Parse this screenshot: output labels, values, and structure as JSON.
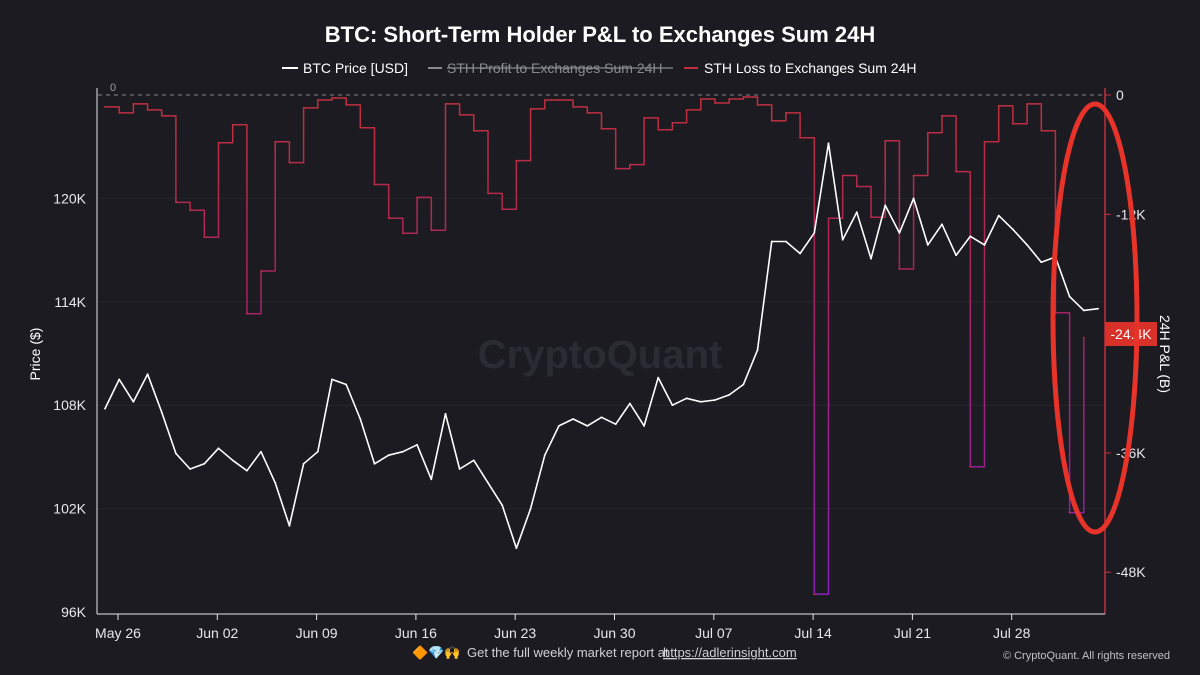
{
  "chart_data": {
    "type": "line",
    "title": "BTC: Short-Term Holder P&L to Exchanges Sum 24H",
    "legend": [
      {
        "name": "BTC Price [USD]",
        "color": "#ffffff",
        "visible": true
      },
      {
        "name": "STH Profit to Exchanges Sum 24H",
        "color": "#8a8a92",
        "visible": false
      },
      {
        "name": "STH Loss to Exchanges Sum 24H",
        "color": "#c2303d",
        "visible": true
      }
    ],
    "legend_placement": "top-center",
    "ylabel_left": "Price ($)",
    "ylabel_right": "24H P&L (B)",
    "left_axis": {
      "ylim": [
        96000,
        126000
      ],
      "ticks": [
        "96K",
        "102K",
        "108K",
        "114K",
        "120K"
      ],
      "tick_values": [
        96000,
        102000,
        108000,
        114000,
        120000
      ]
    },
    "right_axis": {
      "ylim": [
        -52000,
        0
      ],
      "ticks": [
        "0",
        "-12K",
        "-24K",
        "-36K",
        "-48K"
      ],
      "tick_values": [
        0,
        -12000,
        -24000,
        -36000,
        -48000
      ]
    },
    "x_axis": {
      "start": "2025-05-26",
      "end": "2025-08-04",
      "tick_labels": [
        "May 26",
        "Jun 02",
        "Jun 09",
        "Jun 16",
        "Jun 23",
        "Jun 30",
        "Jul 07",
        "Jul 14",
        "Jul 21",
        "Jul 28"
      ],
      "tick_dates": [
        "2025-05-26",
        "2025-06-02",
        "2025-06-09",
        "2025-06-16",
        "2025-06-23",
        "2025-06-30",
        "2025-07-07",
        "2025-07-14",
        "2025-07-21",
        "2025-07-28"
      ]
    },
    "current_value_badge": "-24.4K",
    "zero_line_label": "0",
    "grid": true,
    "series": [
      {
        "name": "BTC Price [USD]",
        "color": "#ffffff",
        "points": [
          [
            "2025-05-26",
            107800
          ],
          [
            "2025-05-27",
            109500
          ],
          [
            "2025-05-28",
            108200
          ],
          [
            "2025-05-29",
            109800
          ],
          [
            "2025-05-30",
            107600
          ],
          [
            "2025-05-31",
            105200
          ],
          [
            "2025-06-01",
            104300
          ],
          [
            "2025-06-02",
            104600
          ],
          [
            "2025-06-03",
            105500
          ],
          [
            "2025-06-04",
            104800
          ],
          [
            "2025-06-05",
            104200
          ],
          [
            "2025-06-06",
            105300
          ],
          [
            "2025-06-07",
            103500
          ],
          [
            "2025-06-08",
            101000
          ],
          [
            "2025-06-09",
            104600
          ],
          [
            "2025-06-10",
            105300
          ],
          [
            "2025-06-11",
            109500
          ],
          [
            "2025-06-12",
            109200
          ],
          [
            "2025-06-13",
            107200
          ],
          [
            "2025-06-14",
            104600
          ],
          [
            "2025-06-15",
            105100
          ],
          [
            "2025-06-16",
            105300
          ],
          [
            "2025-06-17",
            105700
          ],
          [
            "2025-06-18",
            103700
          ],
          [
            "2025-06-19",
            107500
          ],
          [
            "2025-06-20",
            104300
          ],
          [
            "2025-06-21",
            104800
          ],
          [
            "2025-06-22",
            103500
          ],
          [
            "2025-06-23",
            102200
          ],
          [
            "2025-06-24",
            99700
          ],
          [
            "2025-06-25",
            102000
          ],
          [
            "2025-06-26",
            105100
          ],
          [
            "2025-06-27",
            106800
          ],
          [
            "2025-06-28",
            107200
          ],
          [
            "2025-06-29",
            106800
          ],
          [
            "2025-06-30",
            107300
          ],
          [
            "2025-07-01",
            106900
          ],
          [
            "2025-07-02",
            108100
          ],
          [
            "2025-07-03",
            106800
          ],
          [
            "2025-07-04",
            109600
          ],
          [
            "2025-07-05",
            108000
          ],
          [
            "2025-07-06",
            108400
          ],
          [
            "2025-07-07",
            108200
          ],
          [
            "2025-07-08",
            108300
          ],
          [
            "2025-07-09",
            108600
          ],
          [
            "2025-07-10",
            109200
          ],
          [
            "2025-07-11",
            111200
          ],
          [
            "2025-07-12",
            117500
          ],
          [
            "2025-07-13",
            117500
          ],
          [
            "2025-07-14",
            116800
          ],
          [
            "2025-07-15",
            118000
          ],
          [
            "2025-07-16",
            123200
          ],
          [
            "2025-07-17",
            117600
          ],
          [
            "2025-07-18",
            119200
          ],
          [
            "2025-07-19",
            116500
          ],
          [
            "2025-07-20",
            119600
          ],
          [
            "2025-07-21",
            118000
          ],
          [
            "2025-07-22",
            120000
          ],
          [
            "2025-07-23",
            117300
          ],
          [
            "2025-07-24",
            118500
          ],
          [
            "2025-07-25",
            116700
          ],
          [
            "2025-07-26",
            117800
          ],
          [
            "2025-07-27",
            117300
          ],
          [
            "2025-07-28",
            119000
          ],
          [
            "2025-07-29",
            118200
          ],
          [
            "2025-07-30",
            117300
          ],
          [
            "2025-07-31",
            116300
          ],
          [
            "2025-08-01",
            116600
          ],
          [
            "2025-08-02",
            114300
          ],
          [
            "2025-08-03",
            113500
          ],
          [
            "2025-08-04",
            113600
          ]
        ]
      },
      {
        "name": "STH Loss to Exchanges Sum 24H",
        "color": "#c2303d",
        "points": [
          [
            "2025-05-26",
            -1200
          ],
          [
            "2025-05-27",
            -1800
          ],
          [
            "2025-05-28",
            -900
          ],
          [
            "2025-05-29",
            -1500
          ],
          [
            "2025-05-30",
            -2100
          ],
          [
            "2025-05-31",
            -10800
          ],
          [
            "2025-06-01",
            -11600
          ],
          [
            "2025-06-02",
            -14300
          ],
          [
            "2025-06-03",
            -4800
          ],
          [
            "2025-06-04",
            -3000
          ],
          [
            "2025-06-05",
            -22000
          ],
          [
            "2025-06-06",
            -17700
          ],
          [
            "2025-06-07",
            -4700
          ],
          [
            "2025-06-08",
            -6800
          ],
          [
            "2025-06-09",
            -1300
          ],
          [
            "2025-06-10",
            -500
          ],
          [
            "2025-06-11",
            -300
          ],
          [
            "2025-06-12",
            -1000
          ],
          [
            "2025-06-13",
            -3300
          ],
          [
            "2025-06-14",
            -9000
          ],
          [
            "2025-06-15",
            -12400
          ],
          [
            "2025-06-16",
            -13900
          ],
          [
            "2025-06-17",
            -10300
          ],
          [
            "2025-06-18",
            -13600
          ],
          [
            "2025-06-19",
            -900
          ],
          [
            "2025-06-20",
            -2000
          ],
          [
            "2025-06-21",
            -3600
          ],
          [
            "2025-06-22",
            -9900
          ],
          [
            "2025-06-23",
            -11500
          ],
          [
            "2025-06-24",
            -6600
          ],
          [
            "2025-06-25",
            -1400
          ],
          [
            "2025-06-26",
            -500
          ],
          [
            "2025-06-27",
            -500
          ],
          [
            "2025-06-28",
            -1200
          ],
          [
            "2025-06-29",
            -1800
          ],
          [
            "2025-06-30",
            -3400
          ],
          [
            "2025-07-01",
            -7400
          ],
          [
            "2025-07-02",
            -7000
          ],
          [
            "2025-07-03",
            -2300
          ],
          [
            "2025-07-04",
            -3500
          ],
          [
            "2025-07-05",
            -2800
          ],
          [
            "2025-07-06",
            -1500
          ],
          [
            "2025-07-07",
            -400
          ],
          [
            "2025-07-08",
            -800
          ],
          [
            "2025-07-09",
            -400
          ],
          [
            "2025-07-10",
            -200
          ],
          [
            "2025-07-11",
            -1000
          ],
          [
            "2025-07-12",
            -2600
          ],
          [
            "2025-07-13",
            -1800
          ],
          [
            "2025-07-14",
            -4300
          ],
          [
            "2025-07-15",
            -50200
          ],
          [
            "2025-07-16",
            -12400
          ],
          [
            "2025-07-17",
            -8100
          ],
          [
            "2025-07-18",
            -9200
          ],
          [
            "2025-07-19",
            -12300
          ],
          [
            "2025-07-20",
            -4600
          ],
          [
            "2025-07-21",
            -17500
          ],
          [
            "2025-07-22",
            -8100
          ],
          [
            "2025-07-23",
            -3800
          ],
          [
            "2025-07-24",
            -2100
          ],
          [
            "2025-07-25",
            -7700
          ],
          [
            "2025-07-26",
            -37400
          ],
          [
            "2025-07-27",
            -4700
          ],
          [
            "2025-07-28",
            -1100
          ],
          [
            "2025-07-29",
            -2900
          ],
          [
            "2025-07-30",
            -900
          ],
          [
            "2025-07-31",
            -3600
          ],
          [
            "2025-08-01",
            -21900
          ],
          [
            "2025-08-02",
            -42000
          ],
          [
            "2025-08-03",
            -24400
          ]
        ]
      }
    ]
  },
  "footer": {
    "emojis": "🔶💎🙌",
    "text": "Get the full weekly market report at",
    "link": "https://adlerinsight.com",
    "copyright": "© CryptoQuant. All rights reserved"
  },
  "watermark": "CryptoQuant"
}
